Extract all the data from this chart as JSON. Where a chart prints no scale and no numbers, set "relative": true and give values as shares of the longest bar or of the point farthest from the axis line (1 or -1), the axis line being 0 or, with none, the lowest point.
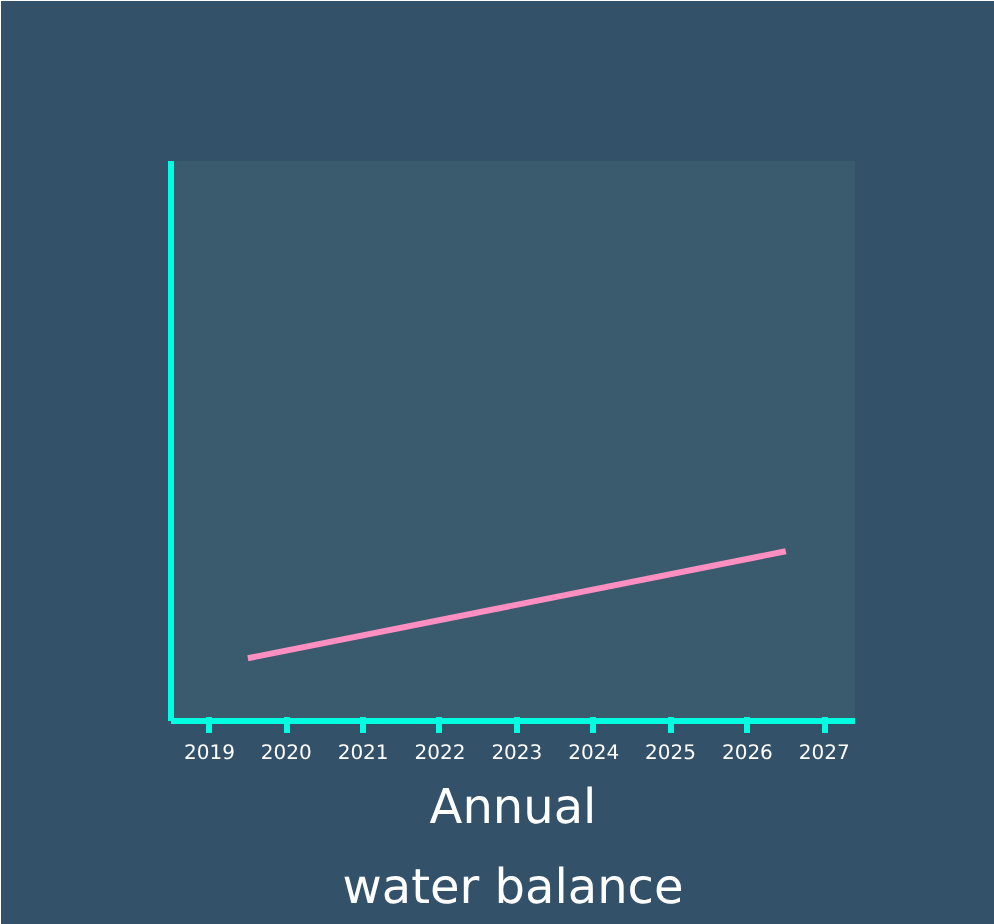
{
  "chart_data": {
    "type": "line",
    "title": "Annual\nwater balance",
    "relative": true,
    "x": [
      2019.5,
      2026.5
    ],
    "values": [
      0.37,
      1
    ],
    "color": "#ff8fc0",
    "xlim": [
      2018.5,
      2027.4
    ],
    "xticks": [
      2019,
      2020,
      2021,
      2022,
      2023,
      2024,
      2025,
      2026,
      2027
    ],
    "grid": false,
    "tick_labels": "x",
    "marker": "none",
    "line_style": "solid"
  }
}
